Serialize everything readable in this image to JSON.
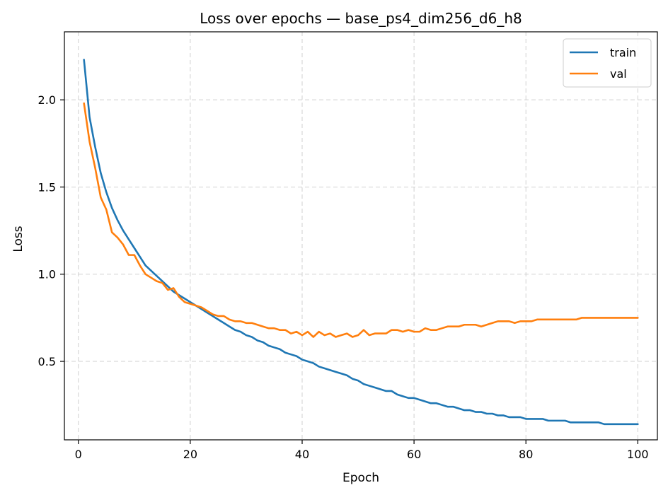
{
  "chart_data": {
    "type": "line",
    "title": "Loss over epochs — base_ps4_dim256_d6_h8",
    "xlabel": "Epoch",
    "ylabel": "Loss",
    "xlim": [
      -2.5,
      103.5
    ],
    "ylim": [
      0.05,
      2.39
    ],
    "xticks": [
      0,
      20,
      40,
      60,
      80,
      100
    ],
    "yticks": [
      0.5,
      1.0,
      1.5,
      2.0
    ],
    "grid": true,
    "legend_position": "top-right",
    "series": [
      {
        "name": "train",
        "color": "#1f77b4",
        "x": [
          1,
          2,
          3,
          4,
          5,
          6,
          7,
          8,
          9,
          10,
          11,
          12,
          13,
          14,
          15,
          16,
          17,
          18,
          19,
          20,
          21,
          22,
          23,
          24,
          25,
          26,
          27,
          28,
          29,
          30,
          31,
          32,
          33,
          34,
          35,
          36,
          37,
          38,
          39,
          40,
          41,
          42,
          43,
          44,
          45,
          46,
          47,
          48,
          49,
          50,
          51,
          52,
          53,
          54,
          55,
          56,
          57,
          58,
          59,
          60,
          61,
          62,
          63,
          64,
          65,
          66,
          67,
          68,
          69,
          70,
          71,
          72,
          73,
          74,
          75,
          76,
          77,
          78,
          79,
          80,
          81,
          82,
          83,
          84,
          85,
          86,
          87,
          88,
          89,
          90,
          91,
          92,
          93,
          94,
          95,
          96,
          97,
          98,
          99,
          100
        ],
        "values": [
          2.23,
          1.9,
          1.73,
          1.58,
          1.47,
          1.38,
          1.31,
          1.25,
          1.2,
          1.15,
          1.1,
          1.05,
          1.02,
          0.99,
          0.96,
          0.93,
          0.9,
          0.88,
          0.86,
          0.84,
          0.82,
          0.8,
          0.78,
          0.76,
          0.74,
          0.72,
          0.7,
          0.68,
          0.67,
          0.65,
          0.64,
          0.62,
          0.61,
          0.59,
          0.58,
          0.57,
          0.55,
          0.54,
          0.53,
          0.51,
          0.5,
          0.49,
          0.47,
          0.46,
          0.45,
          0.44,
          0.43,
          0.42,
          0.4,
          0.39,
          0.37,
          0.36,
          0.35,
          0.34,
          0.33,
          0.33,
          0.31,
          0.3,
          0.29,
          0.29,
          0.28,
          0.27,
          0.26,
          0.26,
          0.25,
          0.24,
          0.24,
          0.23,
          0.22,
          0.22,
          0.21,
          0.21,
          0.2,
          0.2,
          0.19,
          0.19,
          0.18,
          0.18,
          0.18,
          0.17,
          0.17,
          0.17,
          0.17,
          0.16,
          0.16,
          0.16,
          0.16,
          0.15,
          0.15,
          0.15,
          0.15,
          0.15,
          0.15,
          0.14,
          0.14,
          0.14,
          0.14,
          0.14,
          0.14,
          0.14
        ]
      },
      {
        "name": "val",
        "color": "#ff7f0e",
        "x": [
          1,
          2,
          3,
          4,
          5,
          6,
          7,
          8,
          9,
          10,
          11,
          12,
          13,
          14,
          15,
          16,
          17,
          18,
          19,
          20,
          21,
          22,
          23,
          24,
          25,
          26,
          27,
          28,
          29,
          30,
          31,
          32,
          33,
          34,
          35,
          36,
          37,
          38,
          39,
          40,
          41,
          42,
          43,
          44,
          45,
          46,
          47,
          48,
          49,
          50,
          51,
          52,
          53,
          54,
          55,
          56,
          57,
          58,
          59,
          60,
          61,
          62,
          63,
          64,
          65,
          66,
          67,
          68,
          69,
          70,
          71,
          72,
          73,
          74,
          75,
          76,
          77,
          78,
          79,
          80,
          81,
          82,
          83,
          84,
          85,
          86,
          87,
          88,
          89,
          90,
          91,
          92,
          93,
          94,
          95,
          96,
          97,
          98,
          99,
          100
        ],
        "values": [
          1.98,
          1.76,
          1.61,
          1.44,
          1.37,
          1.24,
          1.21,
          1.17,
          1.11,
          1.11,
          1.05,
          1.0,
          0.98,
          0.96,
          0.95,
          0.91,
          0.92,
          0.87,
          0.84,
          0.83,
          0.82,
          0.81,
          0.79,
          0.77,
          0.76,
          0.76,
          0.74,
          0.73,
          0.73,
          0.72,
          0.72,
          0.71,
          0.7,
          0.69,
          0.69,
          0.68,
          0.68,
          0.66,
          0.67,
          0.65,
          0.67,
          0.64,
          0.67,
          0.65,
          0.66,
          0.64,
          0.65,
          0.66,
          0.64,
          0.65,
          0.68,
          0.65,
          0.66,
          0.66,
          0.66,
          0.68,
          0.68,
          0.67,
          0.68,
          0.67,
          0.67,
          0.69,
          0.68,
          0.68,
          0.69,
          0.7,
          0.7,
          0.7,
          0.71,
          0.71,
          0.71,
          0.7,
          0.71,
          0.72,
          0.73,
          0.73,
          0.73,
          0.72,
          0.73,
          0.73,
          0.73,
          0.74,
          0.74,
          0.74,
          0.74,
          0.74,
          0.74,
          0.74,
          0.74,
          0.75,
          0.75,
          0.75,
          0.75,
          0.75,
          0.75,
          0.75,
          0.75,
          0.75,
          0.75,
          0.75
        ]
      }
    ]
  }
}
